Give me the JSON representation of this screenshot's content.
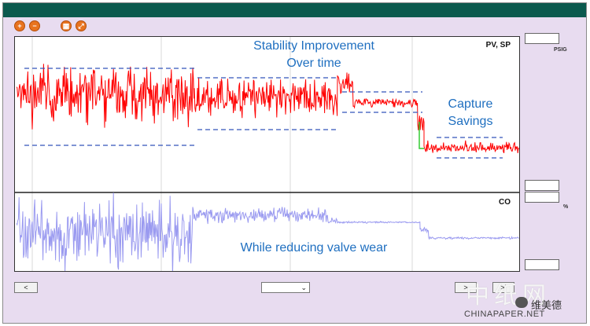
{
  "toolbar": {
    "buttons": [
      {
        "name": "zoom-in-button",
        "icon": "zoom-in-icon",
        "glyph": "+"
      },
      {
        "name": "zoom-out-button",
        "icon": "zoom-out-icon",
        "glyph": "−"
      },
      {
        "name": "grid-button",
        "icon": "grid-icon",
        "glyph": "▦"
      },
      {
        "name": "expand-button",
        "icon": "expand-icon",
        "glyph": "⤢"
      }
    ]
  },
  "pv_panel": {
    "label": "PV, SP",
    "unit": "PSIG",
    "annotation_top_line1": "Stability Improvement",
    "annotation_top_line2": "Over time",
    "annotation_right_line1": "Capture",
    "annotation_right_line2": "Savings"
  },
  "co_panel": {
    "label": "CO",
    "unit": "%",
    "annotation": "While reducing valve wear"
  },
  "nav": {
    "prev_label": "<",
    "next_label": ">",
    "last_label": ">|"
  },
  "watermark": {
    "chinese": "中纸网",
    "english": "CHINAPAPER.NET",
    "name": "维美德"
  },
  "colors": {
    "titlebar": "#0b5a4e",
    "background": "#e8dcf0",
    "pv_trace": "#ff0000",
    "co_trace": "#9a9af0",
    "band_lines": "#3355bb",
    "annotation_text": "#1f6fc0"
  }
}
